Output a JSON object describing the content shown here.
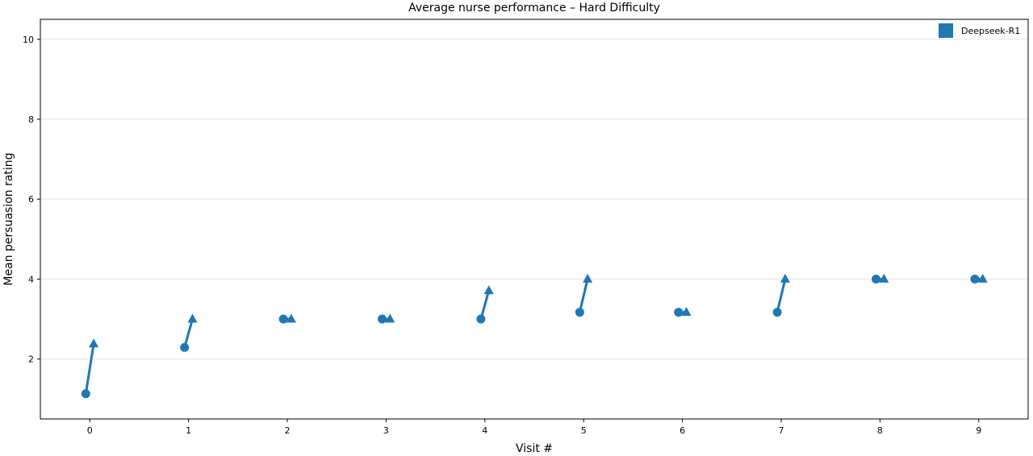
{
  "chart_data": {
    "type": "scatter",
    "title": "Average nurse performance – Hard Difficulty",
    "xlabel": "Visit #",
    "ylabel": "Mean persuasion rating",
    "x_ticks": [
      0,
      1,
      2,
      3,
      4,
      5,
      6,
      7,
      8,
      9
    ],
    "y_ticks": [
      2,
      4,
      6,
      8,
      10
    ],
    "xlim": [
      -0.5,
      9.5
    ],
    "ylim": [
      0.5,
      10.5
    ],
    "grid": "horizontal",
    "legend_position": "top-right",
    "color": "#1f77b4",
    "series": [
      {
        "name": "Deepseek-R1",
        "x": [
          0,
          1,
          2,
          3,
          4,
          5,
          6,
          7,
          8,
          9
        ],
        "start": [
          1.13,
          2.29,
          3.0,
          3.0,
          3.0,
          3.17,
          3.17,
          3.17,
          4.0,
          4.0
        ],
        "end": [
          2.38,
          3.0,
          3.0,
          3.0,
          3.71,
          4.0,
          3.17,
          4.0,
          4.0,
          4.0
        ]
      }
    ]
  }
}
